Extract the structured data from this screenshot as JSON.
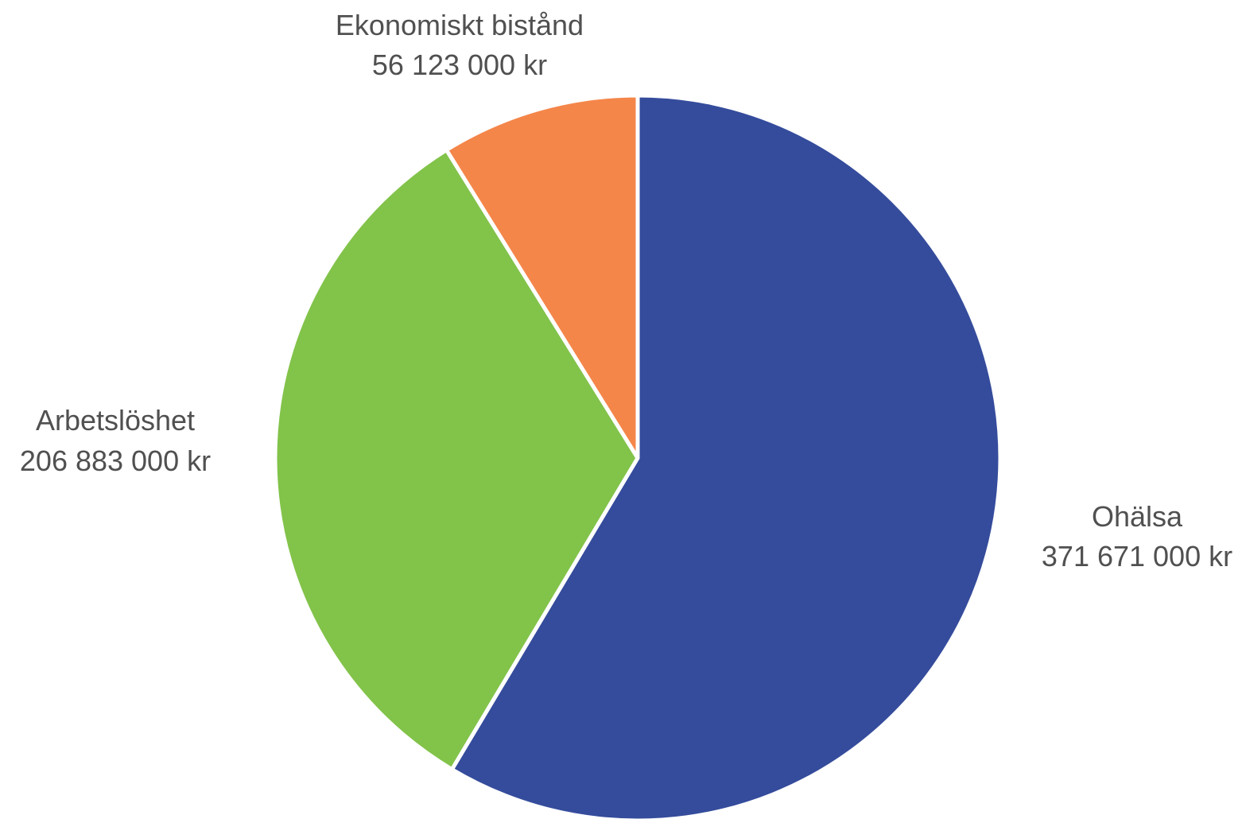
{
  "chart_data": {
    "type": "pie",
    "title": "",
    "start_angle_deg": 0,
    "direction": "clockwise",
    "slices": [
      {
        "name": "Ohälsa",
        "value": 371671000,
        "value_label": "371 671 000 kr",
        "color": "#354C9C"
      },
      {
        "name": "Arbetslöshet",
        "value": 206883000,
        "value_label": "206 883 000 kr",
        "color": "#82C34A"
      },
      {
        "name": "Ekonomiskt bistånd",
        "value": 56123000,
        "value_label": "56 123 000 kr",
        "color": "#F4864A"
      }
    ],
    "legend": "none",
    "label_placement": "outside"
  }
}
